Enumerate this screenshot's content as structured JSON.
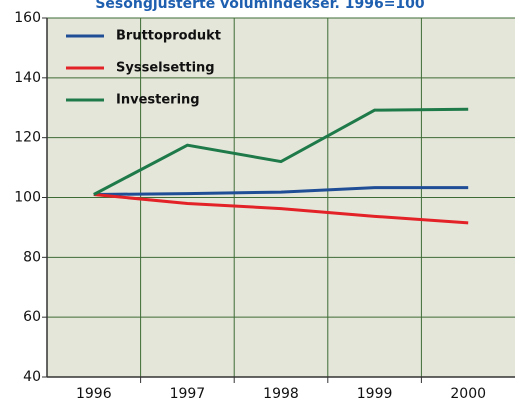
{
  "chart_data": {
    "type": "line",
    "title": "Sesongjusterte volumindekser. 1996=100",
    "categories": [
      "1996",
      "1997",
      "1998",
      "1999",
      "2000"
    ],
    "series": [
      {
        "name": "Bruttoprodukt",
        "color": "#1f4e96",
        "values": [
          101,
          101.3,
          101.8,
          103.3,
          103.3
        ]
      },
      {
        "name": "Sysselsetting",
        "color": "#e32228",
        "values": [
          101,
          98,
          96.3,
          93.7,
          91.5
        ]
      },
      {
        "name": "Investering",
        "color": "#1f7a4a",
        "values": [
          101,
          117.5,
          112,
          129.2,
          129.5
        ]
      }
    ],
    "ylim": [
      40,
      160
    ],
    "yticks": [
      40,
      60,
      80,
      100,
      120,
      140,
      160
    ],
    "grid": true,
    "legend": "top-left"
  }
}
